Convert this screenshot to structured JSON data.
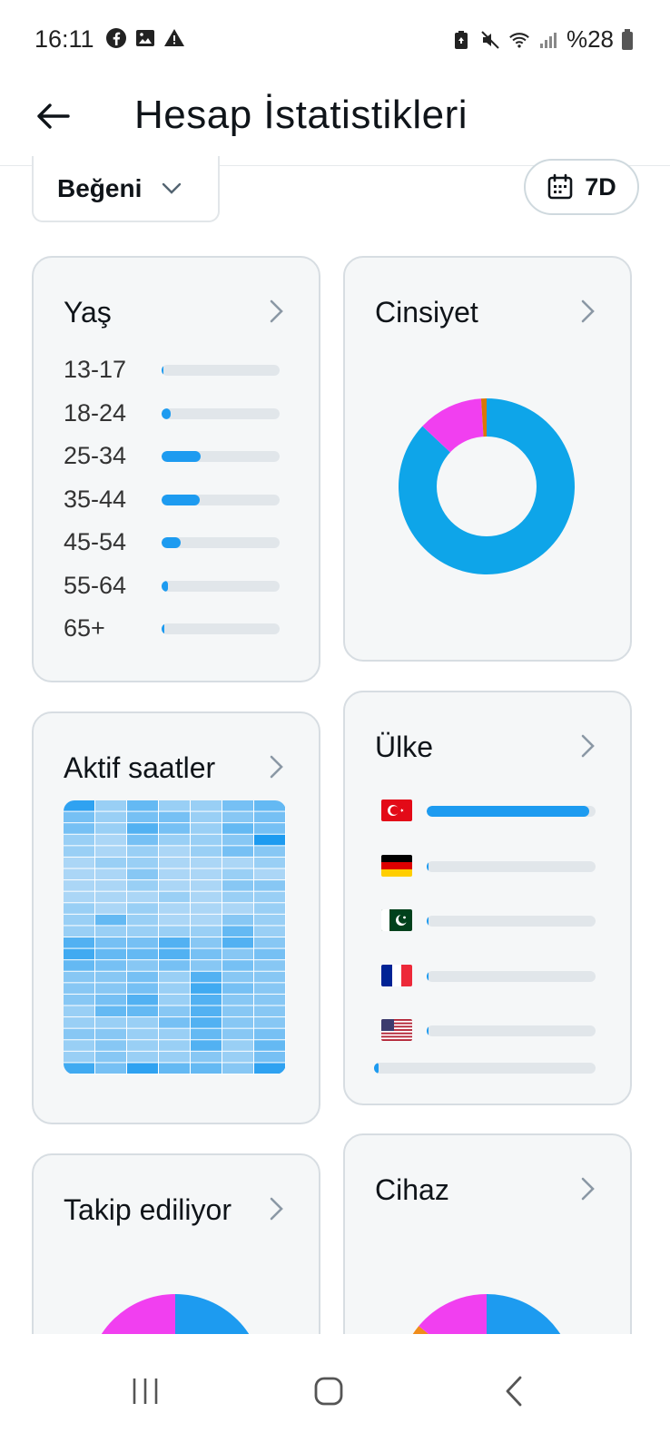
{
  "status_bar": {
    "time": "16:11",
    "battery": "%28",
    "left_icons": [
      "facebook-icon",
      "image-icon",
      "warning-icon"
    ],
    "right_icons": [
      "battery-saver-icon",
      "mute-icon",
      "wifi-icon",
      "signal-icon",
      "battery-icon"
    ]
  },
  "header": {
    "title": "Hesap İstatistikleri"
  },
  "filters": {
    "metric": "Beğeni",
    "range": "7D"
  },
  "age_card": {
    "title": "Yaş",
    "groups": [
      {
        "label": "13-17",
        "value": 0.0
      },
      {
        "label": "18-24",
        "value": 0.08
      },
      {
        "label": "25-34",
        "value": 0.33
      },
      {
        "label": "35-44",
        "value": 0.32
      },
      {
        "label": "45-54",
        "value": 0.16
      },
      {
        "label": "55-64",
        "value": 0.05
      },
      {
        "label": "65+",
        "value": 0.01
      }
    ]
  },
  "gender_card": {
    "title": "Cinsiyet",
    "segments": [
      {
        "value": 0.87,
        "color": "#0ea5e9"
      },
      {
        "value": 0.12,
        "color": "#f13ff0"
      },
      {
        "value": 0.01,
        "color": "#d97706"
      }
    ]
  },
  "active_hours_card": {
    "title": "Aktif saatler",
    "columns": 7,
    "rows": 24,
    "intensity": [
      [
        0.9,
        0.3,
        0.6,
        0.3,
        0.3,
        0.5,
        0.6
      ],
      [
        0.5,
        0.3,
        0.5,
        0.5,
        0.3,
        0.4,
        0.5
      ],
      [
        0.5,
        0.3,
        0.7,
        0.5,
        0.3,
        0.6,
        0.5
      ],
      [
        0.3,
        0.2,
        0.5,
        0.3,
        0.3,
        0.4,
        1.0
      ],
      [
        0.3,
        0.2,
        0.3,
        0.2,
        0.3,
        0.5,
        0.4
      ],
      [
        0.2,
        0.3,
        0.3,
        0.2,
        0.2,
        0.2,
        0.3
      ],
      [
        0.2,
        0.2,
        0.4,
        0.2,
        0.2,
        0.3,
        0.2
      ],
      [
        0.2,
        0.2,
        0.3,
        0.2,
        0.2,
        0.4,
        0.4
      ],
      [
        0.2,
        0.2,
        0.2,
        0.3,
        0.2,
        0.3,
        0.3
      ],
      [
        0.3,
        0.2,
        0.3,
        0.2,
        0.2,
        0.2,
        0.3
      ],
      [
        0.3,
        0.6,
        0.3,
        0.2,
        0.2,
        0.4,
        0.3
      ],
      [
        0.3,
        0.3,
        0.3,
        0.3,
        0.3,
        0.6,
        0.3
      ],
      [
        0.7,
        0.5,
        0.5,
        0.7,
        0.4,
        0.7,
        0.4
      ],
      [
        0.8,
        0.6,
        0.6,
        0.7,
        0.5,
        0.4,
        0.5
      ],
      [
        0.6,
        0.5,
        0.4,
        0.5,
        0.4,
        0.5,
        0.4
      ],
      [
        0.4,
        0.4,
        0.5,
        0.3,
        0.7,
        0.4,
        0.4
      ],
      [
        0.4,
        0.4,
        0.5,
        0.3,
        0.8,
        0.5,
        0.4
      ],
      [
        0.4,
        0.5,
        0.7,
        0.3,
        0.7,
        0.4,
        0.4
      ],
      [
        0.3,
        0.6,
        0.6,
        0.4,
        0.7,
        0.4,
        0.4
      ],
      [
        0.3,
        0.3,
        0.3,
        0.5,
        0.7,
        0.4,
        0.4
      ],
      [
        0.4,
        0.4,
        0.3,
        0.3,
        0.6,
        0.4,
        0.5
      ],
      [
        0.3,
        0.4,
        0.3,
        0.3,
        0.7,
        0.3,
        0.6
      ],
      [
        0.3,
        0.4,
        0.3,
        0.3,
        0.4,
        0.3,
        0.5
      ],
      [
        0.8,
        0.5,
        0.9,
        0.6,
        0.6,
        0.4,
        0.9
      ]
    ]
  },
  "country_card": {
    "title": "Ülke",
    "countries": [
      {
        "flag": "turkey-flag-icon",
        "value": 0.96
      },
      {
        "flag": "germany-flag-icon",
        "value": 0.005
      },
      {
        "flag": "pakistan-flag-icon",
        "value": 0.005
      },
      {
        "flag": "france-flag-icon",
        "value": 0.005
      },
      {
        "flag": "usa-flag-icon",
        "value": 0.005
      }
    ],
    "other_value": 0.02
  },
  "following_card": {
    "title": "Takip ediliyor",
    "segments": [
      {
        "value": 0.5,
        "color": "#1d9bf0"
      },
      {
        "value": 0.5,
        "color": "#f13ff0"
      }
    ]
  },
  "device_card": {
    "title": "Cihaz",
    "segments": [
      {
        "value": 0.72,
        "color": "#1d9bf0"
      },
      {
        "value": 0.14,
        "color": "#f08c1a"
      },
      {
        "value": 0.14,
        "color": "#f13ff0"
      }
    ]
  },
  "nav": {
    "icons": [
      "recent-apps-icon",
      "home-icon",
      "back-nav-icon"
    ]
  }
}
